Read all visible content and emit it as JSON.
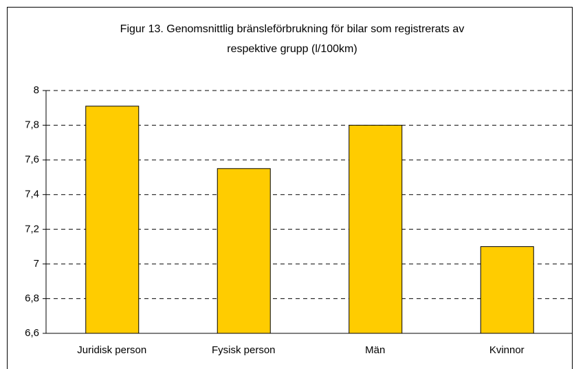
{
  "chart_data": {
    "type": "bar",
    "title": [
      "Figur 13. Genomsnittlig bränsleförbrukning för bilar som registrerats av",
      "respektive grupp  (l/100km)"
    ],
    "categories": [
      "Juridisk person",
      "Fysisk person",
      "Män",
      "Kvinnor"
    ],
    "values": [
      7.91,
      7.55,
      7.8,
      7.1
    ],
    "color": "#ffcc00",
    "ylim": [
      6.6,
      8
    ],
    "yticks": [
      {
        "value": 6.6,
        "label": "6,6"
      },
      {
        "value": 6.8,
        "label": "6,8"
      },
      7,
      {
        "value": 7.2,
        "label": "7,2"
      },
      {
        "value": 7.4,
        "label": "7,4"
      },
      {
        "value": 7.6,
        "label": "7,6"
      },
      {
        "value": 7.8,
        "label": "7,8"
      },
      8
    ],
    "grid": true
  }
}
